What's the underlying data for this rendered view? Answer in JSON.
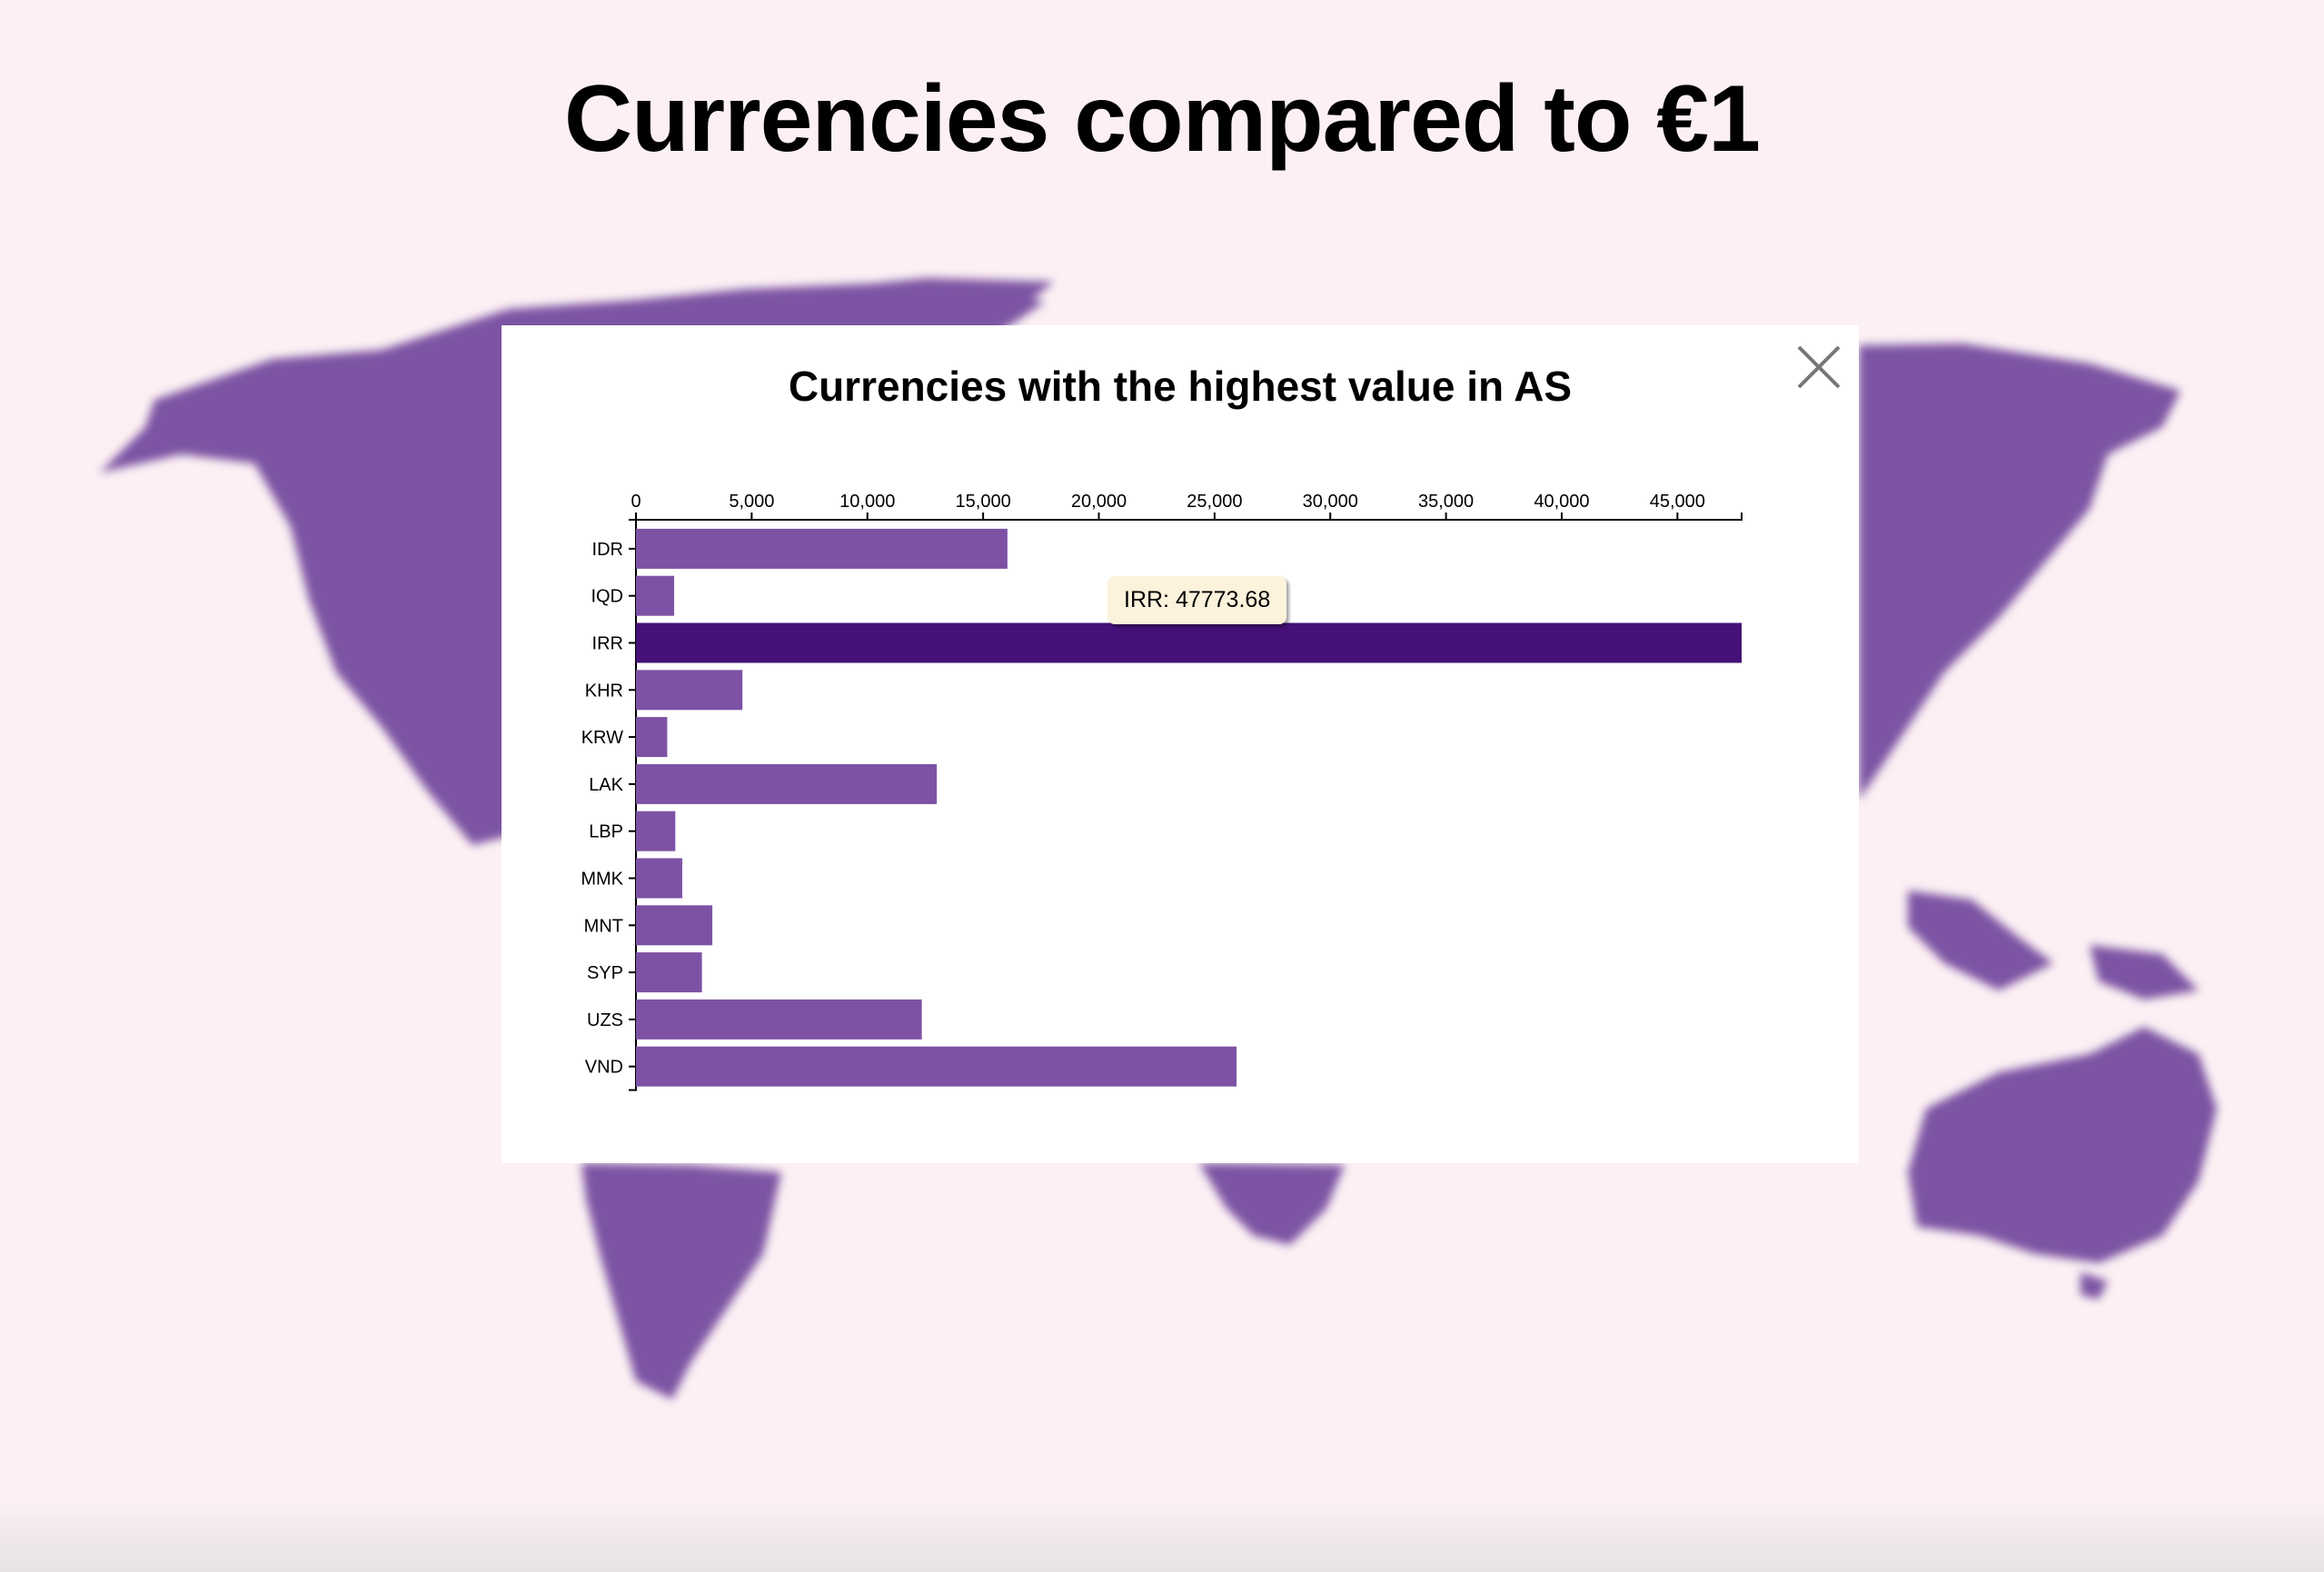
{
  "page": {
    "title": "Currencies compared to €1"
  },
  "modal": {
    "close_icon": "close-x-icon"
  },
  "tooltip": {
    "text": "IRR: 47773.68"
  },
  "colors": {
    "bar": "#7d52a5",
    "bar_highlight": "#451178",
    "map": "#7c54a3",
    "background": "#fcf0f4"
  },
  "chart_data": {
    "type": "bar",
    "orientation": "horizontal",
    "title": "Currencies with the highest value in AS",
    "categories": [
      "IDR",
      "IQD",
      "IRR",
      "KHR",
      "KRW",
      "LAK",
      "LBP",
      "MMK",
      "MNT",
      "SYP",
      "UZS",
      "VND"
    ],
    "values": [
      16050,
      1650,
      47773.68,
      4600,
      1350,
      13000,
      1700,
      2000,
      3300,
      2850,
      12350,
      25950
    ],
    "highlighted": "IRR",
    "x_ticks": [
      0,
      5000,
      10000,
      15000,
      20000,
      25000,
      30000,
      35000,
      40000,
      45000
    ],
    "x_tick_labels": [
      "0",
      "5,000",
      "10,000",
      "15,000",
      "20,000",
      "25,000",
      "30,000",
      "35,000",
      "40,000",
      "45,000"
    ],
    "xlim": [
      0,
      47773.68
    ],
    "xaxis_position": "top",
    "grid": false,
    "legend": "none"
  }
}
